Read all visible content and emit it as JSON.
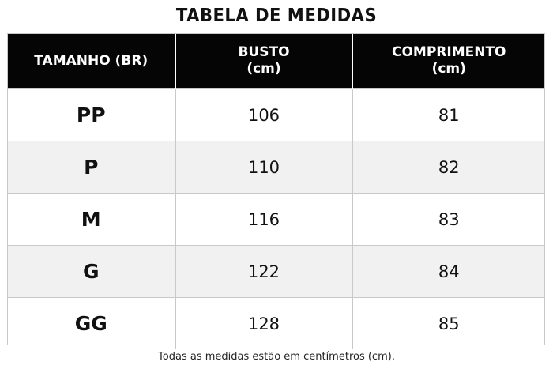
{
  "title": "TABELA DE MEDIDAS",
  "headers": {
    "size": "TAMANHO (BR)",
    "bust_line1": "BUSTO",
    "bust_line2": "(cm)",
    "length_line1": "COMPRIMENTO",
    "length_line2": "(cm)"
  },
  "rows": [
    {
      "size": "PP",
      "bust": "106",
      "length": "81"
    },
    {
      "size": "P",
      "bust": "110",
      "length": "82"
    },
    {
      "size": "M",
      "bust": "116",
      "length": "83"
    },
    {
      "size": "G",
      "bust": "122",
      "length": "84"
    },
    {
      "size": "GG",
      "bust": "128",
      "length": "85"
    }
  ],
  "footnote": "Todas as medidas estão em centímetros (cm).",
  "colors": {
    "header_background": "#050505",
    "header_text": "#ffffff",
    "alt_row_background": "#f1f1f1",
    "grid_line": "#c9c9c9"
  }
}
